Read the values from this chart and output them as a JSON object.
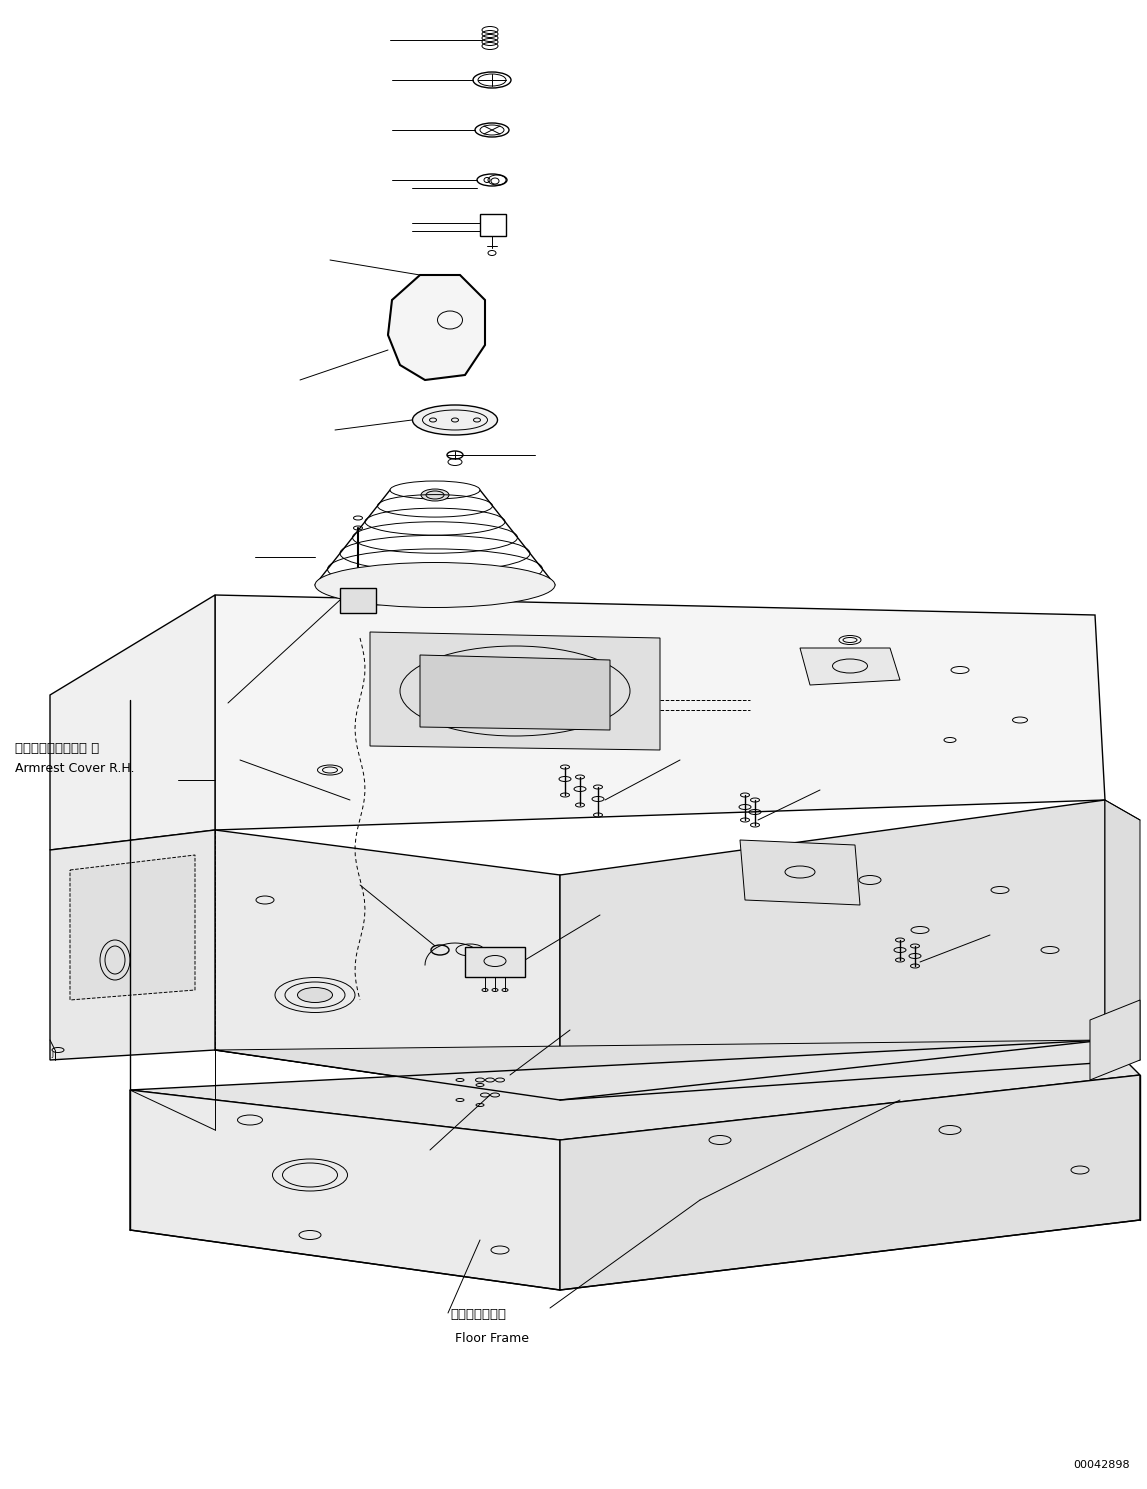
{
  "background_color": "#ffffff",
  "line_color": "#000000",
  "fig_width": 11.47,
  "fig_height": 14.89,
  "dpi": 100,
  "label_armrest_jp": "アームレストカバー 右",
  "label_armrest_en": "Armrest Cover R.H.",
  "label_floor_jp": "フロアフレーム",
  "label_floor_en": "Floor Frame",
  "footer_id": "00042898"
}
